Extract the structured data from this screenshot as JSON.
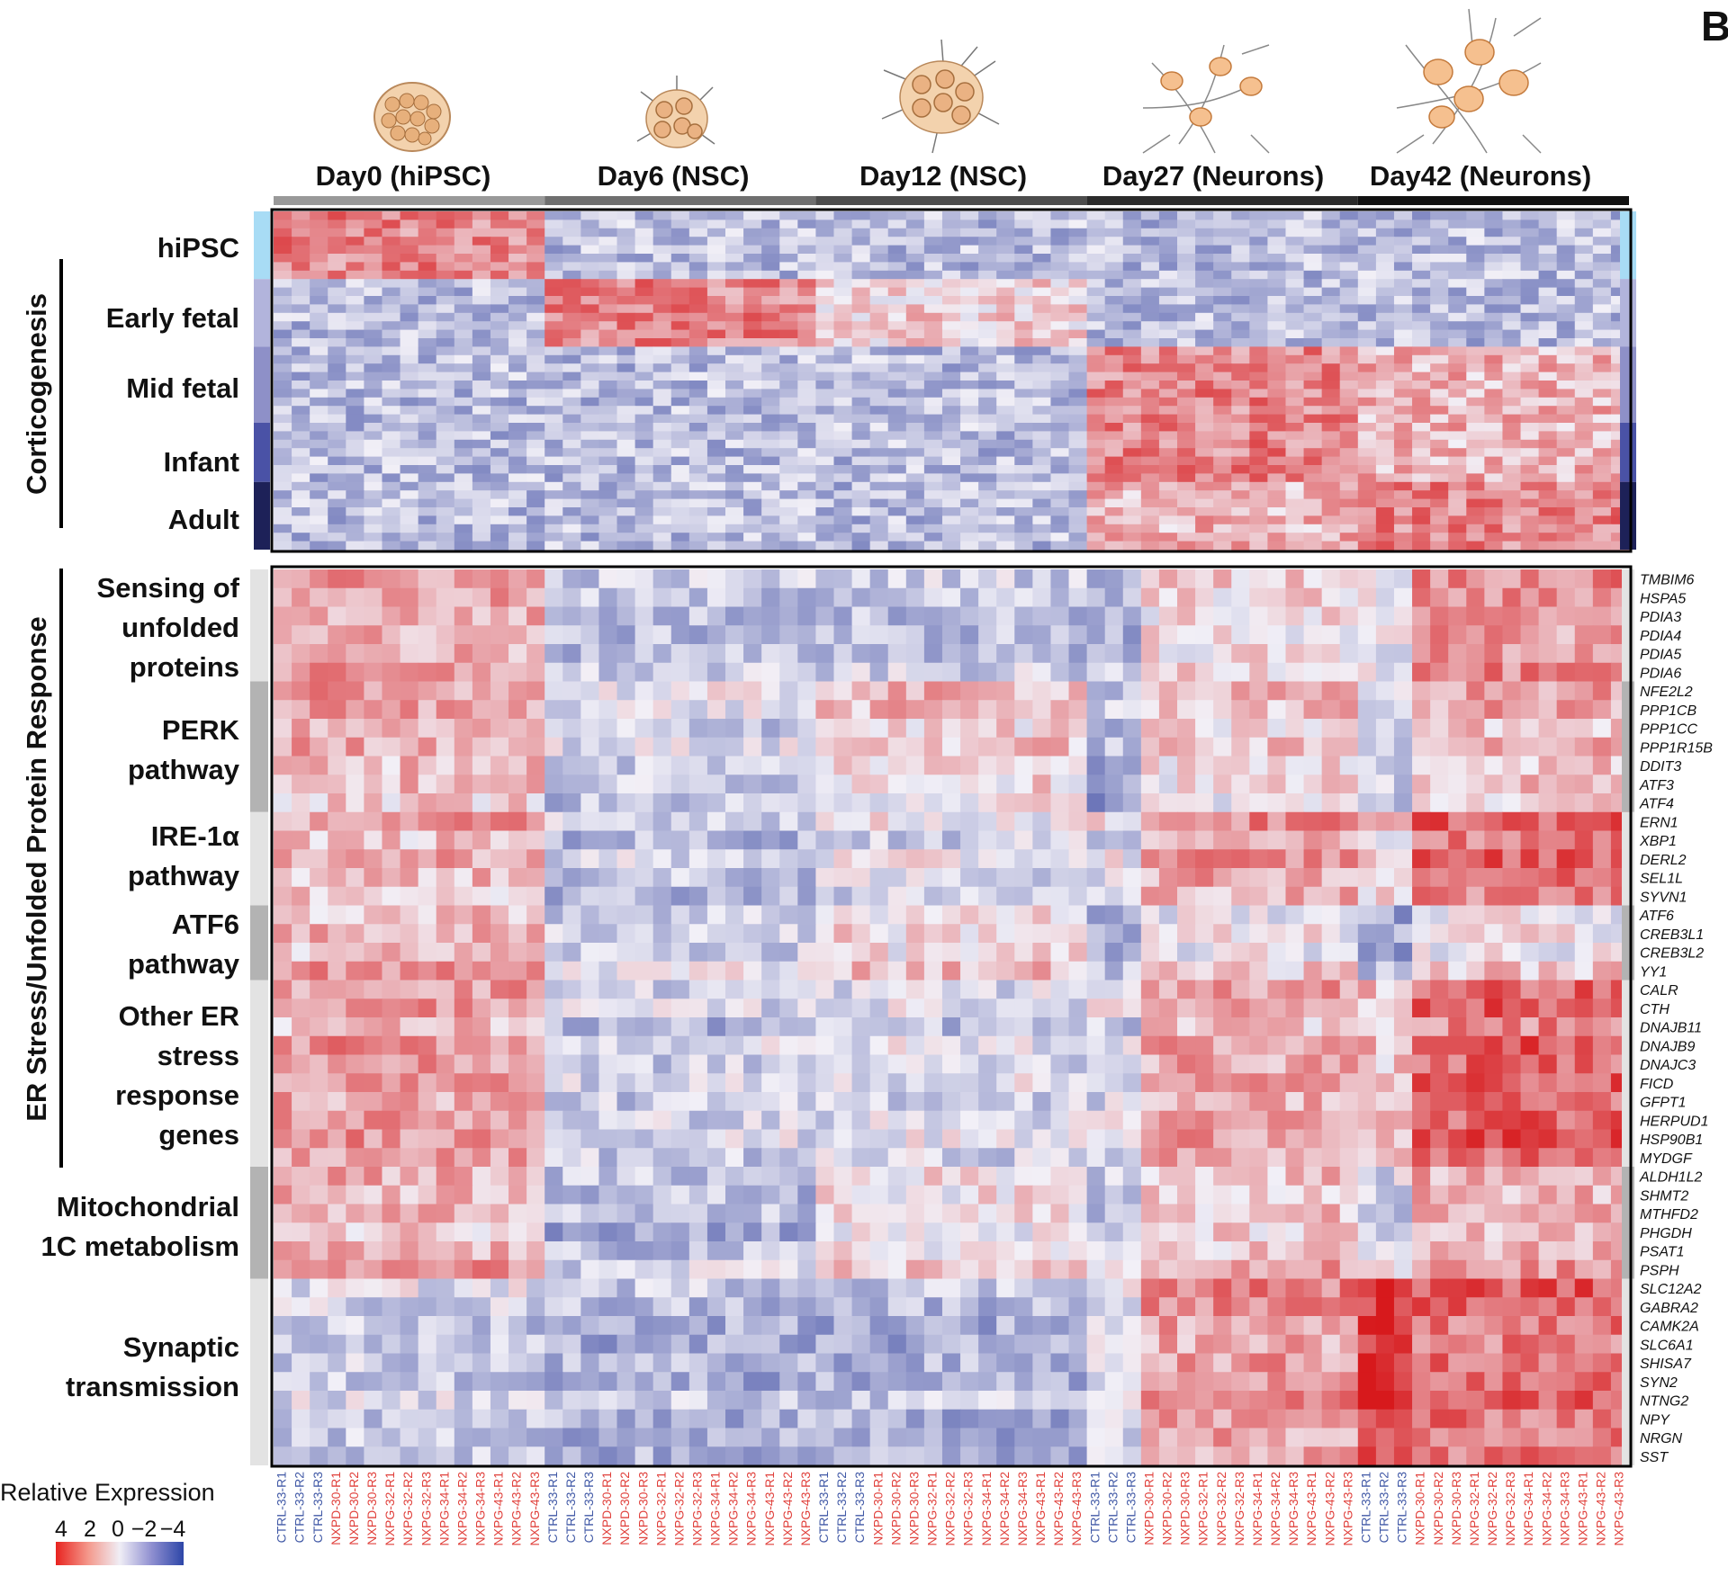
{
  "panel_label": "B",
  "colors": {
    "hipsc": "#a8dcf5",
    "early_fetal": "#b2b4dc",
    "mid_fetal": "#8e90c8",
    "infant": "#4a52a6",
    "adult": "#1d2158",
    "ctrl_text": "#4159a6",
    "nxp_text": "#e0413c",
    "bar0": "#999999",
    "bar1": "#6f6f6f",
    "bar2": "#4d4d4d",
    "bar3": "#2b2b2b",
    "bar4": "#111111",
    "side_light": "#e3e3e3",
    "side_dark": "#b3b3b3",
    "high": "#d7191c",
    "mid": "#f2f0f7",
    "low": "#2b3a9a"
  },
  "chart_data": {
    "type": "heatmap",
    "title": "",
    "value_range": [
      -4,
      4
    ],
    "colorbar": {
      "title": "Relative Expression",
      "tick_labels": [
        "4",
        "2",
        "0",
        "−2",
        "−4"
      ]
    },
    "timepoints": [
      {
        "label": "Day0 (hiPSC)",
        "columns": 15
      },
      {
        "label": "Day6 (NSC)",
        "columns": 15
      },
      {
        "label": "Day12 (NSC)",
        "columns": 15
      },
      {
        "label": "Day27 (Neurons)",
        "columns": 15
      },
      {
        "label": "Day42 (Neurons)",
        "columns": 15
      }
    ],
    "sample_labels": [
      "CTRL-33-R1",
      "CTRL-33-R2",
      "CTRL-33-R3",
      "NXPD-30-R1",
      "NXPD-30-R2",
      "NXPD-30-R3",
      "NXPG-32-R1",
      "NXPG-32-R2",
      "NXPG-32-R3",
      "NXPG-34-R1",
      "NXPG-34-R2",
      "NXPG-34-R3",
      "NXPG-43-R1",
      "NXPG-43-R2",
      "NXPG-43-R3"
    ],
    "corticogenesis": {
      "axis_label": "Corticogenesis",
      "rows": 40,
      "groups": [
        {
          "label": "hiPSC",
          "rows": 8,
          "color_key": "hipsc",
          "active_timepoint": 0
        },
        {
          "label": "Early fetal",
          "rows": 8,
          "color_key": "early_fetal",
          "active_timepoint": 1
        },
        {
          "label": "Mid fetal",
          "rows": 9,
          "color_key": "mid_fetal",
          "active_timepoint": 3
        },
        {
          "label": "Infant",
          "rows": 7,
          "color_key": "infant",
          "active_timepoint": 3
        },
        {
          "label": "Adult",
          "rows": 8,
          "color_key": "adult",
          "active_timepoint": 4
        }
      ]
    },
    "er_stress": {
      "axis_label": "ER Stress/Unfolded Protein Response",
      "groups": [
        {
          "label": "Sensing of unfolded proteins",
          "genes": [
            "TMBIM6",
            "HSPA5",
            "PDIA3",
            "PDIA4",
            "PDIA5",
            "PDIA6"
          ]
        },
        {
          "label": "PERK pathway",
          "genes": [
            "NFE2L2",
            "PPP1CB",
            "PPP1CC",
            "PPP1R15B",
            "DDIT3",
            "ATF3",
            "ATF4"
          ]
        },
        {
          "label": "IRE-1α pathway",
          "genes": [
            "ERN1",
            "XBP1",
            "DERL2",
            "SEL1L",
            "SYVN1"
          ]
        },
        {
          "label": "ATF6 pathway",
          "genes": [
            "ATF6",
            "CREB3L1",
            "CREB3L2",
            "YY1"
          ]
        },
        {
          "label": "Other ER stress response genes",
          "genes": [
            "CALR",
            "CTH",
            "DNAJB11",
            "DNAJB9",
            "DNAJC3",
            "FICD",
            "GFPT1",
            "HERPUD1",
            "HSP90B1",
            "MYDGF"
          ]
        },
        {
          "label": "Mitochondrial 1C metabolism",
          "genes": [
            "ALDH1L2",
            "SHMT2",
            "MTHFD2",
            "PHGDH",
            "PSAT1",
            "PSPH"
          ]
        },
        {
          "label": "Synaptic transmission",
          "genes": [
            "SLC12A2",
            "GABRA2",
            "CAMK2A",
            "SLC6A1",
            "SHISA7",
            "SYN2",
            "NTNG2",
            "NPY",
            "NRGN",
            "SST"
          ]
        }
      ],
      "group_mean_by_timepoint": [
        [
          1.3,
          -0.6,
          -0.5,
          0.6,
          1.6
        ],
        [
          0.9,
          -0.5,
          0.5,
          0.4,
          0.8
        ],
        [
          0.9,
          -0.7,
          -0.3,
          1.2,
          1.9
        ],
        [
          1.0,
          -0.3,
          0.5,
          0.2,
          0.3
        ],
        [
          1.1,
          -0.7,
          -0.5,
          1.0,
          1.9
        ],
        [
          1.0,
          -0.8,
          0.3,
          0.8,
          1.0
        ],
        [
          -0.6,
          -1.0,
          -1.0,
          1.3,
          1.9
        ]
      ]
    }
  },
  "text": {
    "day0": "Day0 (hiPSC)",
    "day6": "Day6 (NSC)",
    "day12": "Day12 (NSC)",
    "day27": "Day27 (Neurons)",
    "day42": "Day42 (Neurons)",
    "cortico_axis": "Corticogenesis",
    "er_axis": "ER Stress/Unfolded Protein Response",
    "c_hipsc": "hiPSC",
    "c_early": "Early fetal",
    "c_mid": "Mid fetal",
    "c_infant": "Infant",
    "c_adult": "Adult",
    "g_sensing_1": "Sensing of",
    "g_sensing_2": "unfolded",
    "g_sensing_3": "proteins",
    "g_perk_1": "PERK",
    "g_perk_2": "pathway",
    "g_ire_1": "IRE-1α",
    "g_ire_2": "pathway",
    "g_atf6_1": "ATF6",
    "g_atf6_2": "pathway",
    "g_other_1": "Other ER",
    "g_other_2": "stress",
    "g_other_3": "response",
    "g_other_4": "genes",
    "g_mito_1": "Mitochondrial",
    "g_mito_2": "1C metabolism",
    "g_syn_1": "Synaptic",
    "g_syn_2": "transmission",
    "colorbar_title": "Relative Expression",
    "tick_4": "4",
    "tick_2": "2",
    "tick_0": "0",
    "tick_m2": "−2",
    "tick_m4": "−4"
  }
}
